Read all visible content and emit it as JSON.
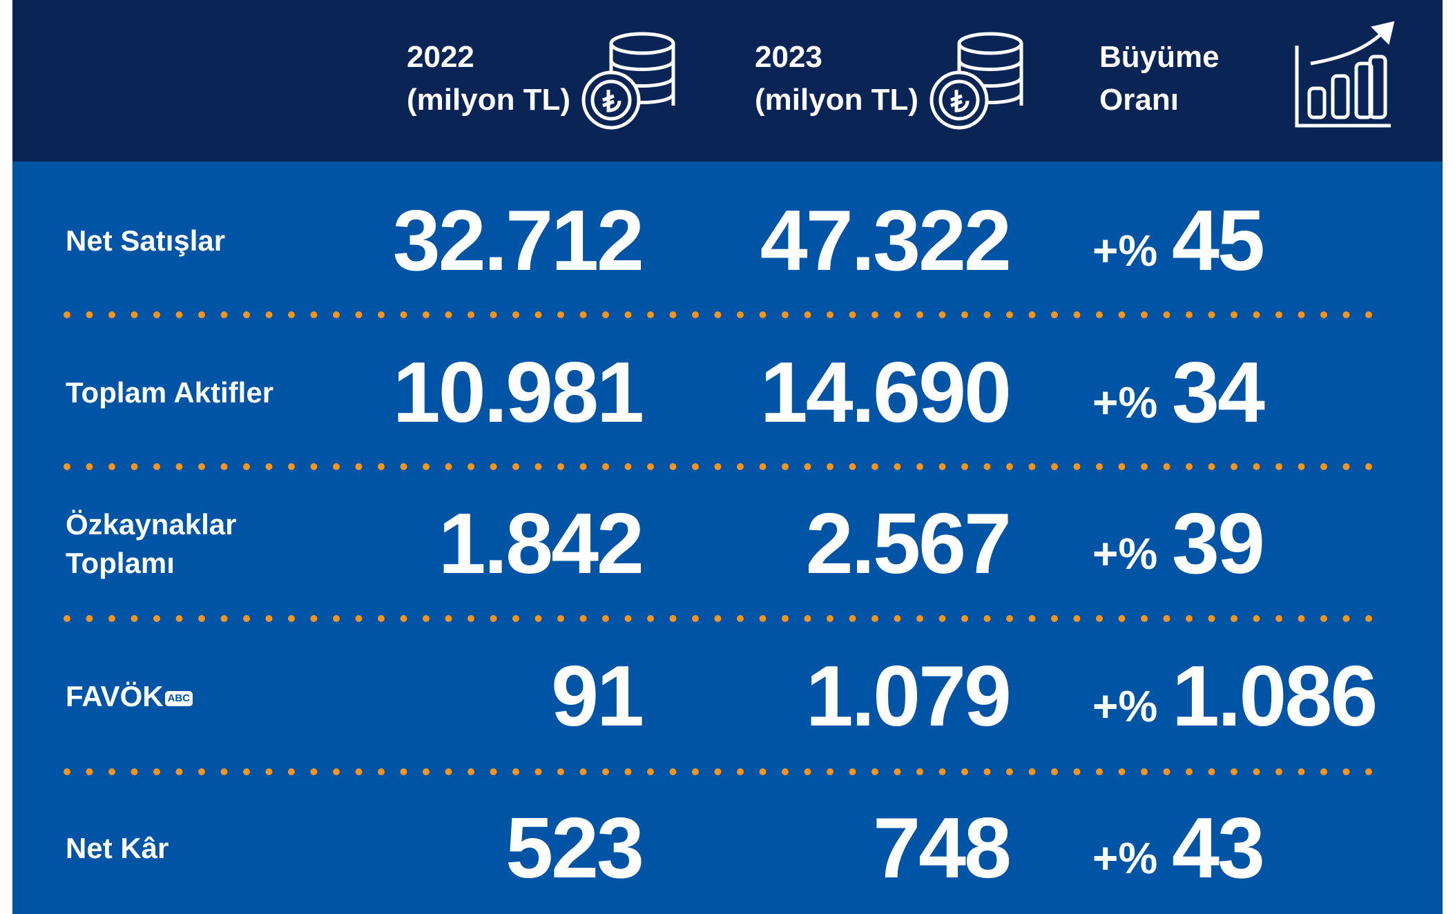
{
  "header": {
    "columns": [
      {
        "line1": "2022",
        "line2": "(milyon TL)"
      },
      {
        "line1": "2023",
        "line2": "(milyon TL)"
      },
      {
        "line1": "Büyüme",
        "line2": "Oranı"
      }
    ]
  },
  "rows": [
    {
      "label": [
        "Net Satışlar"
      ],
      "v2022": "32.712",
      "v2023": "47.322",
      "sign": "+%",
      "growth": "45"
    },
    {
      "label": [
        "Toplam Aktifler"
      ],
      "v2022": "10.981",
      "v2023": "14.690",
      "sign": "+%",
      "growth": "34"
    },
    {
      "label": [
        "Özkaynaklar",
        "Toplamı"
      ],
      "v2022": "1.842",
      "v2023": "2.567",
      "sign": "+%",
      "growth": "39"
    },
    {
      "label": [
        "FAVÖK"
      ],
      "badge": "ABC",
      "v2022": "91",
      "v2023": "1.079",
      "sign": "+%",
      "growth": "1.086"
    },
    {
      "label": [
        "Net Kâr"
      ],
      "v2022": "523",
      "v2023": "748",
      "sign": "+%",
      "growth": "43"
    }
  ]
}
